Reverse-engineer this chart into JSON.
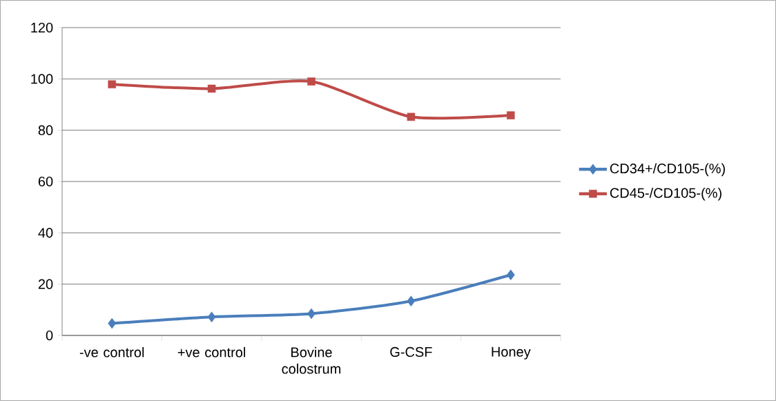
{
  "chart_data": {
    "type": "line",
    "categories": [
      "-ve control",
      "+ve control",
      "Bovine colostrum",
      "G-CSF",
      "Honey"
    ],
    "series": [
      {
        "name": "CD34+/CD105-(%)",
        "color": "#4a7ebb",
        "marker": "diamond",
        "values": [
          4.7,
          7.2,
          8.5,
          13.4,
          23.6
        ]
      },
      {
        "name": "CD45-/CD105-(%)",
        "color": "#be4b48",
        "marker": "square",
        "values": [
          97.9,
          96.2,
          99.0,
          85.2,
          85.8
        ]
      }
    ],
    "ylim": [
      0,
      120
    ],
    "yticks": [
      0,
      20,
      40,
      60,
      80,
      100,
      120
    ],
    "grid": "y",
    "legend": "right",
    "line_style": "solid"
  }
}
